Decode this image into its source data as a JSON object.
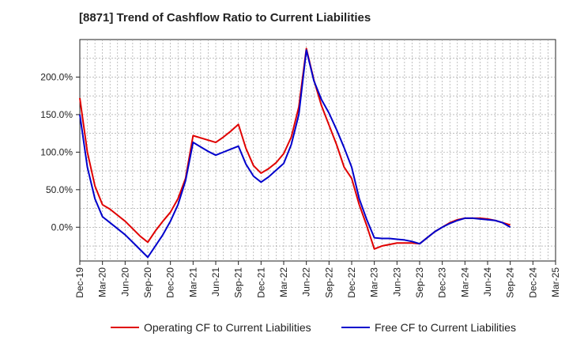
{
  "chart_data": {
    "type": "line",
    "title": "[8871]  Trend of Cashflow Ratio to Current Liabilities",
    "xlabel": "",
    "ylabel": "",
    "x_tick_labels": [
      "Dec-19",
      "Mar-20",
      "Jun-20",
      "Sep-20",
      "Dec-20",
      "Mar-21",
      "Jun-21",
      "Sep-21",
      "Dec-21",
      "Mar-22",
      "Jun-22",
      "Sep-22",
      "Dec-22",
      "Mar-23",
      "Jun-23",
      "Sep-23",
      "Dec-23",
      "Mar-24",
      "Jun-24",
      "Sep-24",
      "Dec-24",
      "Mar-25"
    ],
    "y_tick_labels": [
      "0.0%",
      "50.0%",
      "100.0%",
      "150.0%",
      "200.0%"
    ],
    "y_ticks": [
      0,
      50,
      100,
      150,
      200
    ],
    "ylim": [
      -45,
      250
    ],
    "grid": true,
    "legend_position": "bottom",
    "x": [
      "Dec-19",
      "Jan-20",
      "Feb-20",
      "Mar-20",
      "Apr-20",
      "May-20",
      "Jun-20",
      "Jul-20",
      "Aug-20",
      "Sep-20",
      "Oct-20",
      "Nov-20",
      "Dec-20",
      "Jan-21",
      "Feb-21",
      "Mar-21",
      "Apr-21",
      "May-21",
      "Jun-21",
      "Jul-21",
      "Aug-21",
      "Sep-21",
      "Oct-21",
      "Nov-21",
      "Dec-21",
      "Jan-22",
      "Feb-22",
      "Mar-22",
      "Apr-22",
      "May-22",
      "Jun-22",
      "Jul-22",
      "Aug-22",
      "Sep-22",
      "Oct-22",
      "Nov-22",
      "Dec-22",
      "Jan-23",
      "Feb-23",
      "Mar-23",
      "Apr-23",
      "May-23",
      "Jun-23",
      "Jul-23",
      "Aug-23",
      "Sep-23",
      "Oct-23",
      "Nov-23",
      "Dec-23",
      "Jan-24",
      "Feb-24",
      "Mar-24",
      "Apr-24",
      "May-24",
      "Jun-24",
      "Jul-24",
      "Aug-24",
      "Sep-24"
    ],
    "series": [
      {
        "name": "Operating CF to Current Liabilities",
        "color": "#e00000",
        "values": [
          172,
          100,
          55,
          30,
          24,
          16,
          8,
          -2,
          -12,
          -20,
          -5,
          8,
          20,
          38,
          65,
          122,
          119,
          116,
          113,
          120,
          128,
          137,
          105,
          82,
          72,
          78,
          86,
          98,
          120,
          160,
          238,
          196,
          162,
          136,
          110,
          80,
          65,
          30,
          2,
          -29,
          -25,
          -23,
          -21,
          -21,
          -21,
          -22,
          -14,
          -6,
          0,
          6,
          10,
          12,
          12,
          12,
          11,
          9,
          6,
          3
        ]
      },
      {
        "name": "Free CF to Current Liabilities",
        "color": "#0000cc",
        "values": [
          150,
          80,
          38,
          14,
          6,
          -2,
          -10,
          -20,
          -30,
          -40,
          -25,
          -10,
          8,
          30,
          62,
          113,
          107,
          101,
          96,
          100,
          104,
          108,
          84,
          68,
          60,
          67,
          76,
          85,
          110,
          150,
          236,
          195,
          170,
          152,
          130,
          106,
          80,
          38,
          10,
          -14,
          -15,
          -15,
          -16,
          -17,
          -19,
          -22,
          -14,
          -6,
          0,
          5,
          9,
          12,
          12,
          11,
          10,
          9,
          6,
          0
        ]
      }
    ]
  }
}
